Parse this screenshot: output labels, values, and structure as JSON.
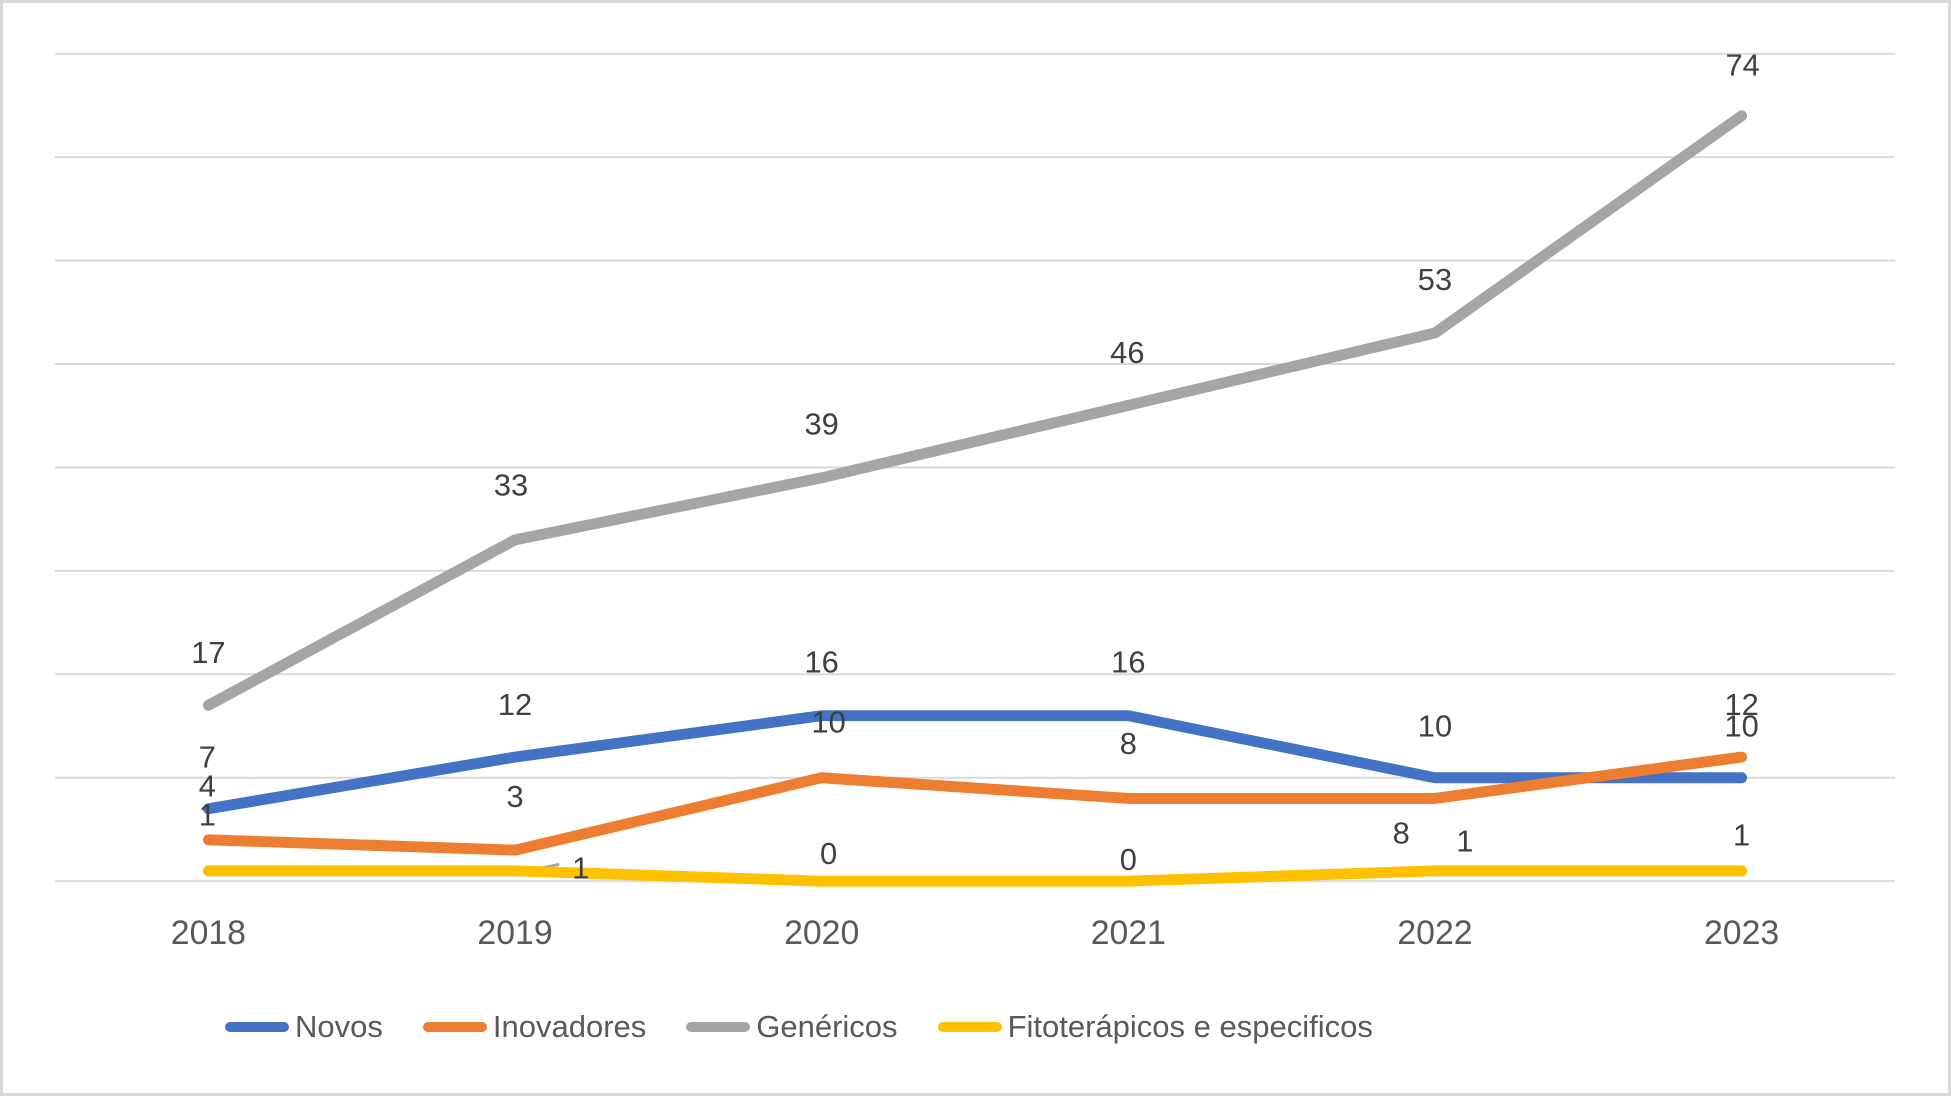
{
  "chart_data": {
    "type": "line",
    "title": "",
    "xlabel": "",
    "ylabel": "",
    "categories": [
      "2018",
      "2019",
      "2020",
      "2021",
      "2022",
      "2023"
    ],
    "series": [
      {
        "name": "Novos",
        "color": "#4472C4",
        "values": [
          7,
          12,
          16,
          16,
          10,
          10
        ],
        "label_offsets": [
          [
            -1,
            -52
          ],
          [
            0,
            -53
          ],
          [
            0,
            -54
          ],
          [
            0,
            -54
          ],
          [
            0,
            -52
          ],
          [
            0,
            -52
          ]
        ]
      },
      {
        "name": "Inovadores",
        "color": "#ED7D31",
        "values": [
          4,
          3,
          10,
          8,
          8,
          12
        ],
        "label_offsets": [
          [
            -1,
            -54
          ],
          [
            0,
            -54
          ],
          [
            7,
            -56
          ],
          [
            0,
            -55
          ],
          [
            -34,
            35
          ],
          [
            0,
            -53
          ]
        ]
      },
      {
        "name": "Genéricos",
        "color": "#A5A5A5",
        "values": [
          17,
          33,
          39,
          46,
          53,
          74
        ],
        "label_offsets": [
          [
            0,
            -53
          ],
          [
            -4,
            -55
          ],
          [
            0,
            -54
          ],
          [
            -1,
            -53
          ],
          [
            0,
            -54
          ],
          [
            1,
            -51
          ]
        ]
      },
      {
        "name": "Fitoterápicos e especificos",
        "color": "#FFC000",
        "values": [
          1,
          1,
          0,
          0,
          1,
          1
        ],
        "label_offsets": [
          [
            -1,
            -56
          ],
          [
            66,
            -3
          ],
          [
            7,
            -28
          ],
          [
            0,
            -22
          ],
          [
            30,
            -30
          ],
          [
            0,
            -36
          ]
        ]
      }
    ],
    "ylim": [
      0,
      80
    ],
    "ytick_step": 10,
    "grid": true,
    "gridline_color": "#D9D9D9",
    "data_labels": true,
    "data_label_color": "#404040",
    "axis_label_color": "#595959",
    "legend_position": "bottom",
    "moved_label_leader": {
      "series_index": 3,
      "category_index": 1,
      "points": [
        [
          516,
          875
        ],
        [
          557,
          866
        ]
      ],
      "color": "#A6A6A6"
    }
  }
}
